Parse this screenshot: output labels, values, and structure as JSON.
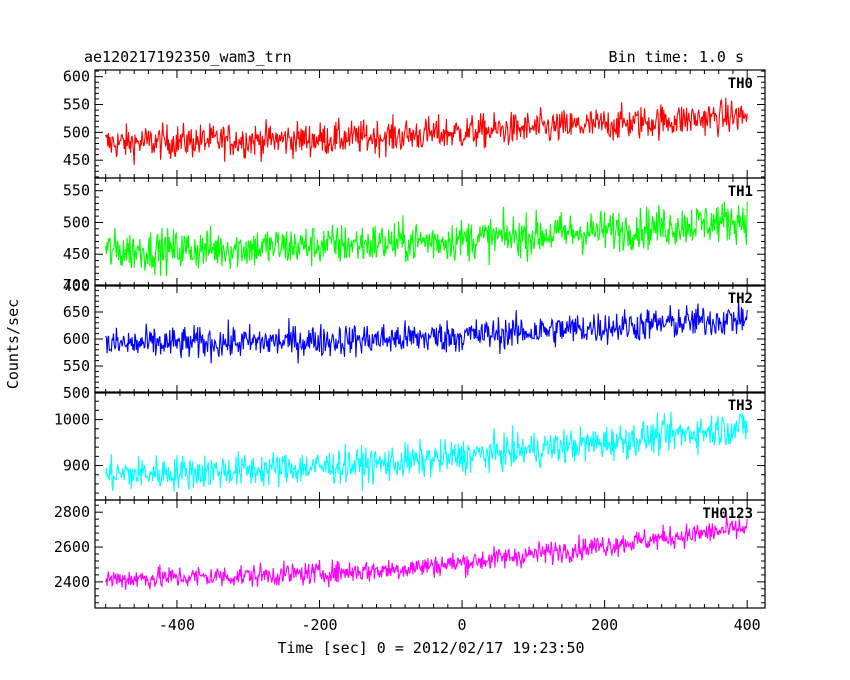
{
  "header": {
    "left": "ae120217192350_wam3_trn",
    "right": "Bin time: 1.0 s"
  },
  "ylabel": "Counts/sec",
  "xlabel": "Time [sec] 0 = 2012/02/17 19:23:50",
  "chart_data": {
    "type": "line",
    "title": "ae120217192350_wam3_trn",
    "subtitle": "Bin time: 1.0 s",
    "xlabel": "Time [sec] 0 = 2012/02/17 19:23:50",
    "ylabel": "Counts/sec",
    "xlim": [
      -515,
      425
    ],
    "x_ticks": [
      -400,
      -200,
      0,
      200,
      400
    ],
    "x_step": 1.0,
    "panels": [
      {
        "name": "TH0",
        "color": "#ff0000",
        "ylim": [
          418,
          612
        ],
        "y_ticks": [
          450,
          500,
          550,
          600
        ],
        "series": {
          "x": [
            -500,
            -400,
            -300,
            -200,
            -100,
            0,
            100,
            200,
            300,
            400
          ],
          "mean": [
            480,
            484,
            486,
            488,
            493,
            500,
            507,
            514,
            522,
            530
          ],
          "spread": 28
        }
      },
      {
        "name": "TH1",
        "color": "#00ff00",
        "ylim": [
          400,
          570
        ],
        "y_ticks": [
          400,
          450,
          500,
          550
        ],
        "series": {
          "x": [
            -500,
            -400,
            -300,
            -200,
            -100,
            0,
            100,
            200,
            300,
            400
          ],
          "mean": [
            455,
            457,
            460,
            464,
            468,
            473,
            480,
            487,
            495,
            505
          ],
          "spread": 30
        }
      },
      {
        "name": "TH2",
        "color": "#0000ff",
        "ylim": [
          500,
          700
        ],
        "y_ticks": [
          500,
          550,
          600,
          650,
          700
        ],
        "series": {
          "x": [
            -500,
            -400,
            -300,
            -200,
            -100,
            0,
            100,
            200,
            300,
            400
          ],
          "mean": [
            590,
            592,
            594,
            597,
            600,
            606,
            614,
            622,
            630,
            638
          ],
          "spread": 28
        }
      },
      {
        "name": "TH3",
        "color": "#00ffff",
        "ylim": [
          825,
          1060
        ],
        "y_ticks": [
          900,
          1000
        ],
        "series": {
          "x": [
            -500,
            -400,
            -300,
            -200,
            -100,
            0,
            100,
            200,
            300,
            400
          ],
          "mean": [
            880,
            885,
            890,
            897,
            905,
            920,
            935,
            950,
            968,
            985
          ],
          "spread": 35
        }
      },
      {
        "name": "TH0123",
        "color": "#ff00ff",
        "ylim": [
          2250,
          2870
        ],
        "y_ticks": [
          2400,
          2600,
          2800
        ],
        "series": {
          "x": [
            -500,
            -400,
            -300,
            -200,
            -100,
            0,
            100,
            200,
            300,
            400
          ],
          "mean": [
            2415,
            2425,
            2435,
            2450,
            2470,
            2510,
            2560,
            2610,
            2660,
            2710
          ],
          "spread": 60
        }
      }
    ]
  }
}
